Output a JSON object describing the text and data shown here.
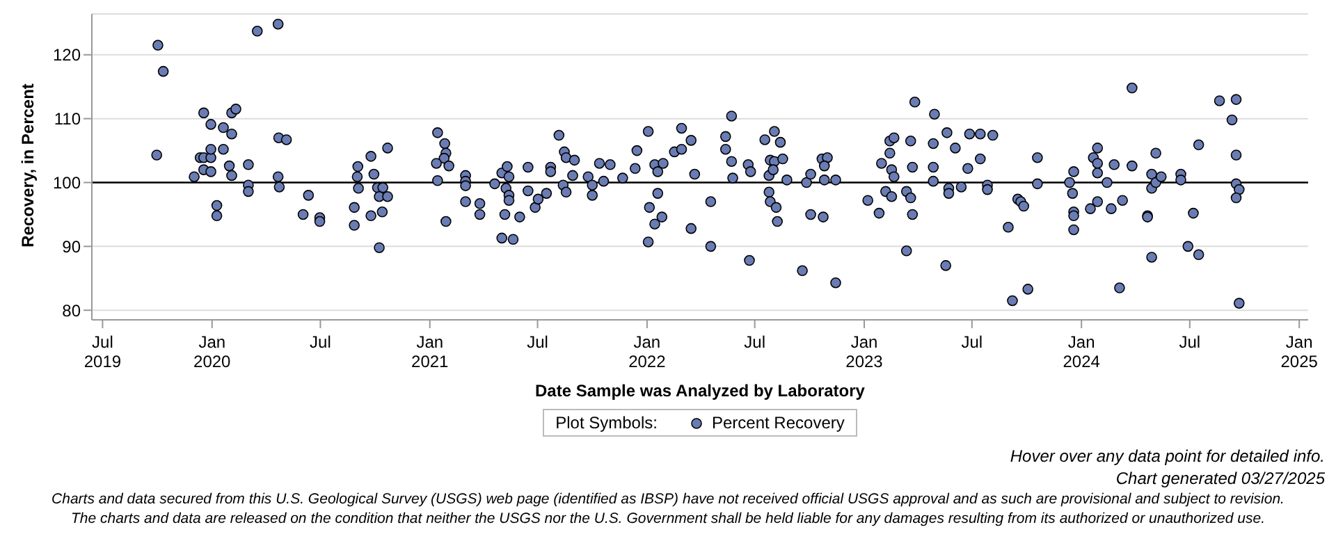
{
  "chart_data": {
    "type": "scatter",
    "xlabel": "Date Sample was Analyzed by Laboratory",
    "ylabel": "Recovery, in Percent",
    "legend_title": "Plot Symbols:",
    "legend": "bottom",
    "grid": "y",
    "marker": "circle",
    "xlim": [
      "2019-06-13",
      "2025-01-16"
    ],
    "ylim": [
      78.5,
      126.4
    ],
    "yticks": [
      80,
      90,
      100,
      110,
      120
    ],
    "xticks": [
      {
        "value": "2019-07-01",
        "label": "Jul 2019"
      },
      {
        "value": "2020-01-01",
        "label": "Jan 2020"
      },
      {
        "value": "2020-07-01",
        "label": "Jul"
      },
      {
        "value": "2021-01-01",
        "label": "Jan 2021"
      },
      {
        "value": "2021-07-01",
        "label": "Jul"
      },
      {
        "value": "2022-01-01",
        "label": "Jan 2022"
      },
      {
        "value": "2022-07-01",
        "label": "Jul"
      },
      {
        "value": "2023-01-01",
        "label": "Jan 2023"
      },
      {
        "value": "2023-07-01",
        "label": "Jul"
      },
      {
        "value": "2024-01-01",
        "label": "Jan 2024"
      },
      {
        "value": "2024-07-01",
        "label": "Jul"
      },
      {
        "value": "2025-01-01",
        "label": "Jan 2025"
      }
    ],
    "ref_lines": [
      {
        "axis": "y",
        "value": 100,
        "label": null,
        "color": "#000000"
      }
    ],
    "annotations": [
      "Hover over any data point for detailed info.",
      "Chart generated 03/27/2025",
      "Charts and data secured from this U.S. Geological Survey (USGS) web page (identified as IBSP) have not received official USGS approval and as such are provisional and subject to revision.",
      "The charts and data are released on the condition that neither the USGS nor the U.S. Government shall be held liable for any damages resulting from its authorized or unauthorized use."
    ],
    "series": [
      {
        "name": "Percent Recovery",
        "color": "#6a7cb4",
        "x": [
          "2019-10-02",
          "2019-10-11",
          "2019-09-30",
          "2019-12-18",
          "2019-12-30",
          "2020-01-20",
          "2020-02-03",
          "2020-02-03",
          "2020-02-10",
          "2019-12-12",
          "2019-12-18",
          "2019-12-30",
          "2019-12-30",
          "2020-01-20",
          "2019-12-18",
          "2019-12-30",
          "2019-12-02",
          "2020-01-30",
          "2020-02-03",
          "2020-03-02",
          "2020-03-02",
          "2020-03-02",
          "2020-01-09",
          "2020-01-09",
          "2020-03-17",
          "2020-04-21",
          "2020-04-22",
          "2020-05-05",
          "2020-04-21",
          "2020-04-23",
          "2020-06-11",
          "2020-06-02",
          "2020-06-30",
          "2020-06-30",
          "2020-08-27",
          "2020-08-27",
          "2020-09-02",
          "2020-09-01",
          "2020-09-03",
          "2020-09-24",
          "2020-09-29",
          "2020-10-22",
          "2020-10-05",
          "2020-10-14",
          "2020-10-08",
          "2020-10-22",
          "2020-10-13",
          "2020-09-24",
          "2020-10-08",
          "2021-01-14",
          "2021-01-26",
          "2021-01-28",
          "2021-01-25",
          "2021-02-02",
          "2021-01-12",
          "2021-01-14",
          "2021-01-28",
          "2021-03-02",
          "2021-03-02",
          "2021-03-02",
          "2021-03-02",
          "2021-03-26",
          "2021-03-26",
          "2021-04-20",
          "2021-05-02",
          "2021-05-11",
          "2021-05-14",
          "2021-05-09",
          "2021-05-14",
          "2021-05-14",
          "2021-05-07",
          "2021-05-02",
          "2021-05-21",
          "2021-06-01",
          "2021-06-15",
          "2021-06-15",
          "2021-06-27",
          "2021-07-02",
          "2021-07-16",
          "2021-07-23",
          "2021-07-23",
          "2021-08-06",
          "2021-08-15",
          "2021-08-18",
          "2021-09-01",
          "2021-08-29",
          "2021-08-13",
          "2021-08-18",
          "2021-09-24",
          "2021-10-01",
          "2021-10-01",
          "2021-10-13",
          "2021-10-20",
          "2021-10-31",
          "2021-11-21",
          "2021-12-12",
          "2021-12-15",
          "2022-01-03",
          "2022-01-14",
          "2022-01-19",
          "2022-01-28",
          "2022-01-19",
          "2022-01-05",
          "2022-01-14",
          "2022-01-26",
          "2022-01-03",
          "2022-02-16",
          "2022-02-28",
          "2022-02-28",
          "2022-03-16",
          "2022-03-22",
          "2022-03-16",
          "2022-04-18",
          "2022-04-18",
          "2022-05-13",
          "2022-05-13",
          "2022-05-23",
          "2022-05-23",
          "2022-05-25",
          "2022-06-22",
          "2022-06-20",
          "2022-06-24",
          "2022-07-18",
          "2022-08-03",
          "2022-08-13",
          "2022-07-27",
          "2022-08-03",
          "2022-08-17",
          "2022-07-25",
          "2022-08-01",
          "2022-08-24",
          "2022-07-25",
          "2022-07-27",
          "2022-08-06",
          "2022-08-08",
          "2022-09-19",
          "2022-09-26",
          "2022-10-03",
          "2022-10-03",
          "2022-10-24",
          "2022-10-22",
          "2022-10-31",
          "2022-10-26",
          "2022-10-26",
          "2022-11-14",
          "2022-11-14",
          "2023-01-07",
          "2023-01-26",
          "2023-01-30",
          "2023-02-06",
          "2023-02-16",
          "2023-02-16",
          "2023-02-20",
          "2023-02-13",
          "2023-02-13",
          "2023-02-20",
          "2023-03-13",
          "2023-03-13",
          "2023-03-20",
          "2023-03-23",
          "2023-03-20",
          "2023-03-23",
          "2023-03-27",
          "2023-04-29",
          "2023-04-27",
          "2023-04-27",
          "2023-04-27",
          "2023-05-20",
          "2023-05-18",
          "2023-05-23",
          "2023-05-23",
          "2023-06-03",
          "2023-06-13",
          "2023-06-24",
          "2023-06-27",
          "2023-07-15",
          "2023-07-15",
          "2023-07-27",
          "2023-07-27",
          "2023-08-05",
          "2023-08-31",
          "2023-09-07",
          "2023-09-16",
          "2023-09-21",
          "2023-09-26",
          "2023-10-03",
          "2023-10-19",
          "2023-10-19",
          "2023-12-12",
          "2023-12-19",
          "2023-12-17",
          "2023-12-19",
          "2023-12-19",
          "2023-12-19",
          "2024-01-16",
          "2024-01-21",
          "2024-01-28",
          "2024-01-28",
          "2024-01-28",
          "2024-01-28",
          "2024-02-13",
          "2024-02-20",
          "2024-02-25",
          "2024-03-05",
          "2024-03-10",
          "2024-03-26",
          "2024-03-26",
          "2024-04-21",
          "2024-04-21",
          "2024-04-28",
          "2024-04-28",
          "2024-04-28",
          "2024-05-05",
          "2024-05-05",
          "2024-05-14",
          "2024-06-16",
          "2024-06-16",
          "2024-06-28",
          "2024-07-07",
          "2024-07-16",
          "2024-07-16",
          "2024-08-20",
          "2024-09-17",
          "2024-09-10",
          "2024-09-17",
          "2024-09-17",
          "2024-09-22",
          "2024-09-17",
          "2024-09-22"
        ],
        "values": [
          121.5,
          117.4,
          104.3,
          110.9,
          109.1,
          108.6,
          107.6,
          110.9,
          111.5,
          103.9,
          103.9,
          103.9,
          105.2,
          105.2,
          102.0,
          101.7,
          100.9,
          102.6,
          101.1,
          102.8,
          99.6,
          98.6,
          96.4,
          94.8,
          123.7,
          124.8,
          107.0,
          106.7,
          100.9,
          99.3,
          98.0,
          95.0,
          94.5,
          93.9,
          96.1,
          93.3,
          102.5,
          100.9,
          99.1,
          104.1,
          101.3,
          105.4,
          99.2,
          99.2,
          97.8,
          97.8,
          95.4,
          94.8,
          89.8,
          107.8,
          106.1,
          104.6,
          103.8,
          102.6,
          103.0,
          100.3,
          93.9,
          101.1,
          100.2,
          99.5,
          97.0,
          96.7,
          95.0,
          99.8,
          101.5,
          102.5,
          100.9,
          99.1,
          98.0,
          97.2,
          95.0,
          91.3,
          91.1,
          94.6,
          102.4,
          98.7,
          96.1,
          97.4,
          98.3,
          102.4,
          101.7,
          107.4,
          104.8,
          103.9,
          103.5,
          101.1,
          99.6,
          98.5,
          100.9,
          99.6,
          98.0,
          103.0,
          100.2,
          102.8,
          100.7,
          102.2,
          105.0,
          108.0,
          102.8,
          101.7,
          103.0,
          98.3,
          96.1,
          93.5,
          94.6,
          90.7,
          104.8,
          105.2,
          108.5,
          106.6,
          101.3,
          92.8,
          97.0,
          90.0,
          107.2,
          105.2,
          110.4,
          103.3,
          100.7,
          87.8,
          102.8,
          101.7,
          106.7,
          108.0,
          106.3,
          103.5,
          103.3,
          103.7,
          101.1,
          102.0,
          100.4,
          98.5,
          97.0,
          96.1,
          93.9,
          86.2,
          100.0,
          101.3,
          95.0,
          94.6,
          103.7,
          103.9,
          102.6,
          100.4,
          100.4,
          84.3,
          97.2,
          95.2,
          103.0,
          98.6,
          97.8,
          102.0,
          100.9,
          104.6,
          106.5,
          107.0,
          89.3,
          98.6,
          97.6,
          95.0,
          106.5,
          102.4,
          112.6,
          110.7,
          106.1,
          102.4,
          100.2,
          107.8,
          87.0,
          99.1,
          98.3,
          105.4,
          99.3,
          102.2,
          107.6,
          107.6,
          103.7,
          99.6,
          98.9,
          107.4,
          93.0,
          81.5,
          97.4,
          97.0,
          96.3,
          83.3,
          103.9,
          99.8,
          100.0,
          101.7,
          98.3,
          95.4,
          94.8,
          92.6,
          95.9,
          103.9,
          105.4,
          103.0,
          101.5,
          97.0,
          100.0,
          95.9,
          102.8,
          83.5,
          97.2,
          114.8,
          102.6,
          94.8,
          94.6,
          88.3,
          101.3,
          99.1,
          104.6,
          100.0,
          100.9,
          101.3,
          100.4,
          90.0,
          95.2,
          105.9,
          88.7,
          112.8,
          113.0,
          109.8,
          104.3,
          99.8,
          98.9,
          97.6,
          81.1
        ]
      }
    ]
  }
}
